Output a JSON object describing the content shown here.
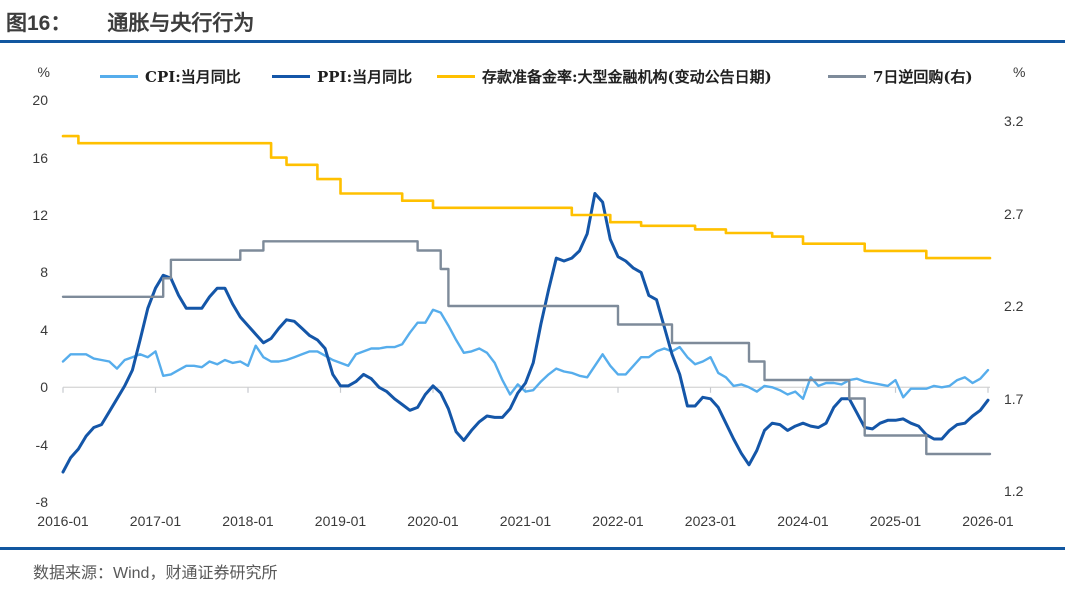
{
  "title": {
    "figure_label": "图16：",
    "figure_title": "通胀与央行行为"
  },
  "source_note": "数据来源：Wind，财通证券研究所",
  "colors": {
    "rule_blue": "#1257a0",
    "cpi_blue": "#56adec",
    "ppi_blue": "#1456a8",
    "rrr_gold": "#ffc000",
    "repo_gray": "#7e8b9a",
    "zero_gridline": "#d9d9d9"
  },
  "axes": {
    "left": {
      "unit": "%",
      "ticks": [
        "20",
        "16",
        "12",
        "8",
        "4",
        "0",
        "-4",
        "-8"
      ],
      "tick_values": [
        20,
        16,
        12,
        8,
        4,
        0,
        -4,
        -8
      ],
      "range": [
        -8,
        20
      ]
    },
    "right": {
      "unit": "%",
      "ticks": [
        "3.2",
        "2.7",
        "2.2",
        "1.7",
        "1.2"
      ],
      "tick_values": [
        3.2,
        2.7,
        2.2,
        1.7,
        1.2
      ],
      "range": [
        1.2,
        3.2
      ]
    },
    "x": {
      "ticks": [
        "2016-01",
        "2017-01",
        "2018-01",
        "2019-01",
        "2020-01",
        "2021-01",
        "2022-01",
        "2023-01",
        "2024-01",
        "2025-01",
        "2026-01"
      ]
    }
  },
  "legend": [
    {
      "label": "CPI:当月同比",
      "color": "#56adec"
    },
    {
      "label": "PPI:当月同比",
      "color": "#1456a8"
    },
    {
      "label": "存款准备金率:大型金融机构(变动公告日期)",
      "color": "#ffc000"
    },
    {
      "label": "7日逆回购(右)",
      "color": "#7e8b9a"
    }
  ],
  "chart_data": {
    "type": "line",
    "title": "通胀与央行行为",
    "frequency": "monthly",
    "x_start": "2016-01",
    "x_end": "2026-01",
    "left_ylim": [
      -8,
      20
    ],
    "right_ylim": [
      1.2,
      3.2
    ],
    "grid": "zero-line-only",
    "legend_position": "top",
    "series": [
      {
        "name": "CPI:当月同比",
        "axis": "left",
        "style": "line",
        "color": "#56adec",
        "values": [
          1.8,
          2.3,
          2.3,
          2.3,
          2.0,
          1.9,
          1.8,
          1.3,
          1.9,
          2.1,
          2.3,
          2.1,
          2.5,
          0.8,
          0.9,
          1.2,
          1.5,
          1.5,
          1.4,
          1.8,
          1.6,
          1.9,
          1.7,
          1.8,
          1.5,
          2.9,
          2.1,
          1.8,
          1.8,
          1.9,
          2.1,
          2.3,
          2.5,
          2.5,
          2.2,
          1.9,
          1.7,
          1.5,
          2.3,
          2.5,
          2.7,
          2.7,
          2.8,
          2.8,
          3.0,
          3.8,
          4.5,
          4.5,
          5.4,
          5.2,
          4.3,
          3.3,
          2.4,
          2.5,
          2.7,
          2.4,
          1.7,
          0.5,
          -0.5,
          0.2,
          -0.3,
          -0.2,
          0.4,
          0.9,
          1.3,
          1.1,
          1.0,
          0.8,
          0.7,
          1.5,
          2.3,
          1.5,
          0.9,
          0.9,
          1.5,
          2.1,
          2.1,
          2.5,
          2.7,
          2.5,
          2.8,
          2.1,
          1.6,
          1.8,
          2.1,
          1.0,
          0.7,
          0.1,
          0.2,
          0.0,
          -0.3,
          0.1,
          0.0,
          -0.2,
          -0.5,
          -0.3,
          -0.8,
          0.7,
          0.1,
          0.3,
          0.3,
          0.2,
          0.5,
          0.6,
          0.4,
          0.3,
          0.2,
          0.1,
          0.5,
          -0.7,
          -0.1,
          -0.1,
          -0.1,
          0.1,
          0.0,
          0.1,
          0.5,
          0.7,
          0.3,
          0.6,
          1.2
        ]
      },
      {
        "name": "PPI:当月同比",
        "axis": "left",
        "style": "line",
        "color": "#1456a8",
        "values": [
          -5.9,
          -4.9,
          -4.3,
          -3.4,
          -2.8,
          -2.6,
          -1.7,
          -0.8,
          0.1,
          1.2,
          3.3,
          5.5,
          6.9,
          7.8,
          7.6,
          6.4,
          5.5,
          5.5,
          5.5,
          6.3,
          6.9,
          6.9,
          5.8,
          4.9,
          4.3,
          3.7,
          3.1,
          3.4,
          4.1,
          4.7,
          4.6,
          4.1,
          3.6,
          3.3,
          2.7,
          0.9,
          0.1,
          0.1,
          0.4,
          0.9,
          0.6,
          0.0,
          -0.3,
          -0.8,
          -1.2,
          -1.6,
          -1.4,
          -0.5,
          0.1,
          -0.4,
          -1.5,
          -3.1,
          -3.7,
          -3.0,
          -2.4,
          -2.0,
          -2.1,
          -2.1,
          -1.5,
          -0.4,
          0.3,
          1.7,
          4.4,
          6.8,
          9.0,
          8.8,
          9.0,
          9.5,
          10.7,
          13.5,
          12.9,
          10.3,
          9.1,
          8.8,
          8.3,
          8.0,
          6.4,
          6.1,
          4.2,
          2.3,
          0.9,
          -1.3,
          -1.3,
          -0.7,
          -0.8,
          -1.4,
          -2.5,
          -3.6,
          -4.6,
          -5.4,
          -4.4,
          -3.0,
          -2.5,
          -2.6,
          -3.0,
          -2.7,
          -2.5,
          -2.7,
          -2.8,
          -2.5,
          -1.4,
          -0.8,
          -0.8,
          -1.8,
          -2.8,
          -2.9,
          -2.5,
          -2.3,
          -2.3,
          -2.2,
          -2.5,
          -2.7,
          -3.3,
          -3.6,
          -3.6,
          -3.0,
          -2.6,
          -2.5,
          -2.0,
          -1.6,
          -0.9
        ]
      },
      {
        "name": "存款准备金率:大型金融机构(变动公告日期)",
        "axis": "left",
        "style": "step",
        "color": "#ffc000",
        "points": [
          [
            "2016-01",
            17.5
          ],
          [
            "2016-03",
            17.0
          ],
          [
            "2018-04",
            16.0
          ],
          [
            "2018-06",
            15.5
          ],
          [
            "2018-10",
            14.5
          ],
          [
            "2019-01",
            13.5
          ],
          [
            "2019-09",
            13.0
          ],
          [
            "2020-01",
            12.5
          ],
          [
            "2021-07",
            12.0
          ],
          [
            "2021-12",
            11.5
          ],
          [
            "2022-04",
            11.25
          ],
          [
            "2022-11",
            11.0
          ],
          [
            "2023-03",
            10.75
          ],
          [
            "2023-09",
            10.5
          ],
          [
            "2024-01",
            10.0
          ],
          [
            "2024-09",
            9.5
          ],
          [
            "2025-05",
            9.0
          ]
        ]
      },
      {
        "name": "7日逆回购(右)",
        "axis": "right",
        "style": "step",
        "color": "#7e8b9a",
        "points": [
          [
            "2016-01",
            2.25
          ],
          [
            "2017-02",
            2.35
          ],
          [
            "2017-03",
            2.45
          ],
          [
            "2017-12",
            2.5
          ],
          [
            "2018-03",
            2.55
          ],
          [
            "2019-11",
            2.5
          ],
          [
            "2020-02",
            2.4
          ],
          [
            "2020-03",
            2.2
          ],
          [
            "2022-01",
            2.1
          ],
          [
            "2022-08",
            2.0
          ],
          [
            "2023-06",
            1.9
          ],
          [
            "2023-08",
            1.8
          ],
          [
            "2024-07",
            1.7
          ],
          [
            "2024-09",
            1.5
          ],
          [
            "2025-05",
            1.4
          ]
        ]
      }
    ]
  }
}
